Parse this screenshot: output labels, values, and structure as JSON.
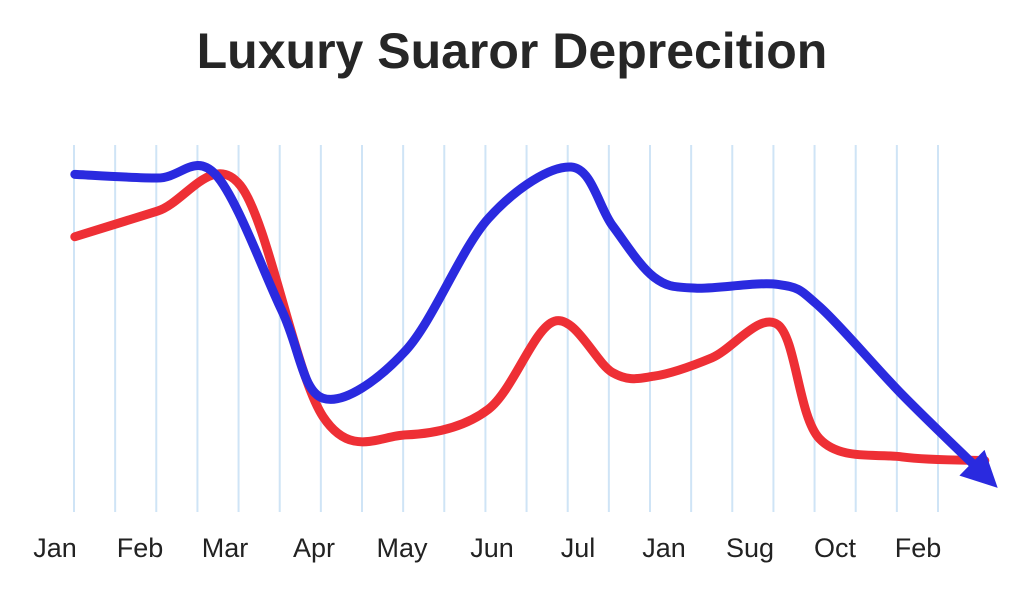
{
  "chart_data": {
    "type": "line",
    "title": "Luxury Suaror Deprecition",
    "xlabel": "",
    "ylabel": "",
    "categories": [
      "Jan",
      "Feb",
      "Mar",
      "Apr",
      "May",
      "Jun",
      "Jul",
      "Jan",
      "Sug",
      "Oct",
      "Feb"
    ],
    "grid": true,
    "y_axis_labels_shown": false,
    "ylim": [
      0,
      100
    ],
    "series": [
      {
        "color": "#2a2adf",
        "x": [
          0,
          1,
          1.7,
          2.5,
          3,
          4,
          5,
          6,
          6.5,
          7,
          7.5,
          8.5,
          9,
          10,
          11
        ],
        "values": [
          92,
          91,
          92,
          55,
          31,
          44,
          80,
          94,
          78,
          64,
          61,
          62,
          56,
          32,
          10
        ]
      },
      {
        "color": "#ee2f35",
        "x": [
          0,
          1,
          2,
          3,
          4,
          5,
          5.8,
          6.5,
          7,
          7.7,
          8.5,
          9,
          10,
          11
        ],
        "values": [
          75,
          82,
          89,
          26,
          21,
          28,
          52,
          38,
          37,
          42,
          51,
          20,
          15,
          14
        ]
      }
    ],
    "vertical_grid_color": "#cfe4f6"
  }
}
